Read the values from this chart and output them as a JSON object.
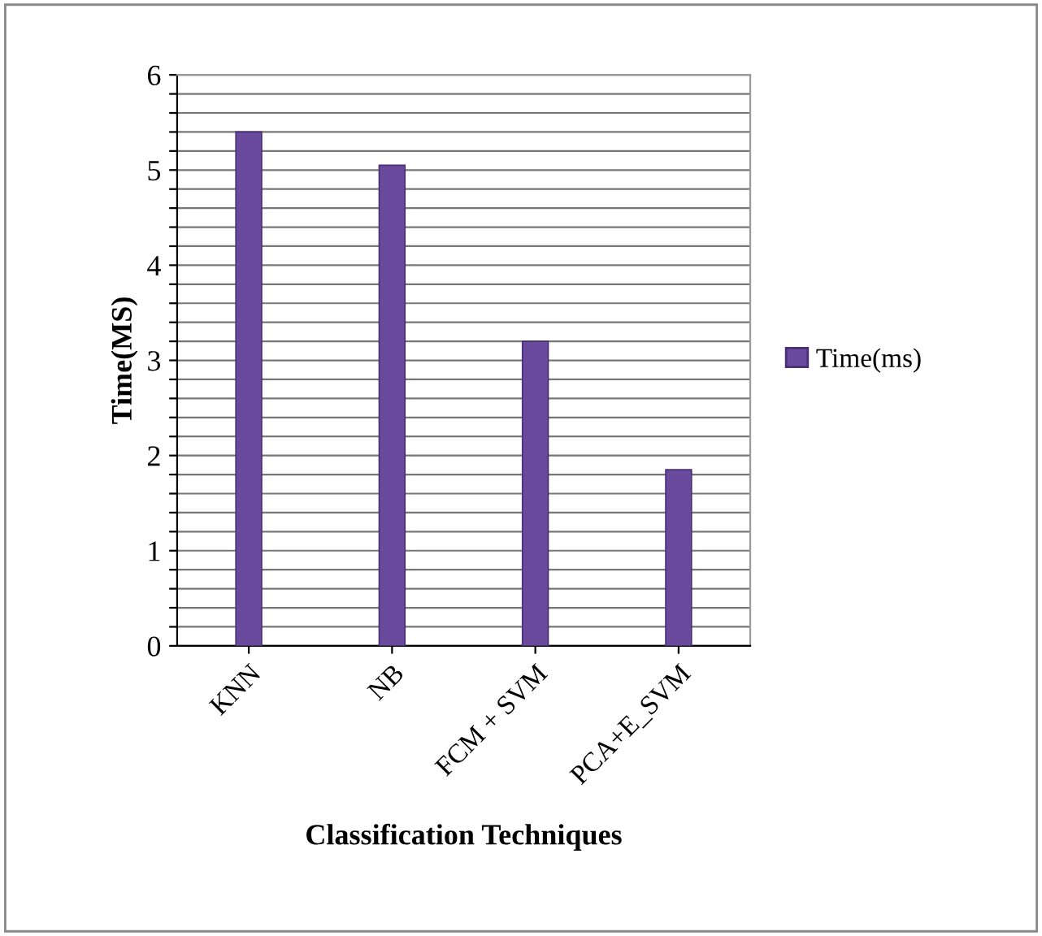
{
  "chart_data": {
    "type": "bar",
    "xlabel": "Classification Techniques",
    "ylabel": "Time(MS)",
    "categories": [
      "KNN",
      "NB",
      "FCM + SVM",
      "PCA+E_SVM"
    ],
    "series": [
      {
        "name": "Time(ms)",
        "color": "#6a4a9c",
        "values": [
          5.4,
          5.05,
          3.2,
          1.85
        ]
      }
    ],
    "ylim": [
      0,
      6
    ],
    "yticks": [
      0,
      {
        "value": 0.2,
        "label": null
      },
      {
        "value": 0.4,
        "label": null
      },
      {
        "value": 0.6,
        "label": null
      },
      {
        "value": 0.8,
        "label": null
      },
      1,
      {
        "value": 1.2,
        "label": null
      },
      {
        "value": 1.4,
        "label": null
      },
      {
        "value": 1.6,
        "label": null
      },
      {
        "value": 1.8,
        "label": null
      },
      2,
      {
        "value": 2.2,
        "label": null
      },
      {
        "value": 2.4,
        "label": null
      },
      {
        "value": 2.6,
        "label": null
      },
      {
        "value": 2.8,
        "label": null
      },
      3,
      {
        "value": 3.2,
        "label": null
      },
      {
        "value": 3.4,
        "label": null
      },
      {
        "value": 3.6,
        "label": null
      },
      {
        "value": 3.8,
        "label": null
      },
      4,
      {
        "value": 4.2,
        "label": null
      },
      {
        "value": 4.4,
        "label": null
      },
      {
        "value": 4.6,
        "label": null
      },
      {
        "value": 4.8,
        "label": null
      },
      5,
      {
        "value": 5.2,
        "label": null
      },
      {
        "value": 5.4,
        "label": null
      },
      {
        "value": 5.6,
        "label": null
      },
      {
        "value": 5.8,
        "label": null
      },
      6
    ],
    "grid": "y",
    "legend": "right"
  }
}
